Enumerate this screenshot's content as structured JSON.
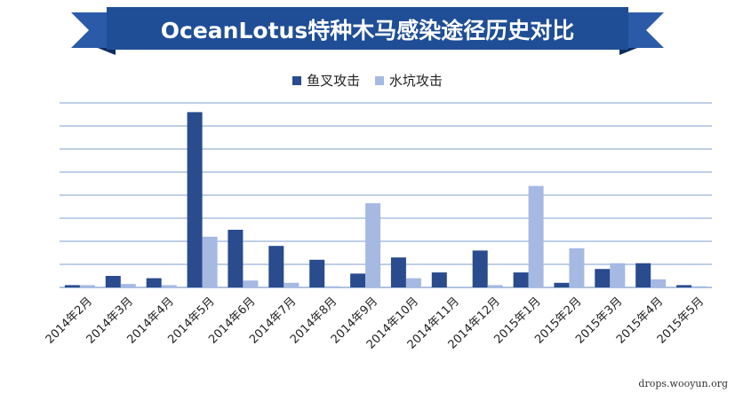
{
  "title": "OceanLotus特种木马感染途径历史对比",
  "colors": {
    "banner_main": "#1f4e96",
    "banner_tail": "#2b5aa8",
    "series1": "#2a4b8d",
    "series2": "#a5b9e3",
    "gridline": "#7f9fcd"
  },
  "legend": [
    {
      "label": "鱼叉攻击",
      "color": "#2a4b8d"
    },
    {
      "label": "水坑攻击",
      "color": "#a5b9e3"
    }
  ],
  "watermark": "drops.wooyun.org",
  "chart_data": {
    "type": "bar",
    "title": "OceanLotus特种木马感染途径历史对比",
    "xlabel": "",
    "ylabel": "",
    "ylim": [
      0,
      80
    ],
    "grid": true,
    "legend_position": "top",
    "categories": [
      "2014年2月",
      "2014年3月",
      "2014年4月",
      "2014年5月",
      "2014年6月",
      "2014年7月",
      "2014年8月",
      "2014年9月",
      "2014年10月",
      "2014年11月",
      "2014年12月",
      "2015年1月",
      "2015年2月",
      "2015年3月",
      "2015年4月",
      "2015年5月"
    ],
    "series": [
      {
        "name": "鱼叉攻击",
        "values": [
          1,
          5,
          4,
          76,
          25,
          18,
          12,
          6,
          13,
          6.5,
          16,
          6.5,
          2,
          8,
          10.5,
          1
        ]
      },
      {
        "name": "水坑攻击",
        "values": [
          1,
          1.5,
          1,
          22,
          3,
          2,
          0.5,
          36.5,
          4,
          0,
          1,
          44,
          17,
          10.5,
          3.5,
          0.5
        ]
      }
    ]
  }
}
